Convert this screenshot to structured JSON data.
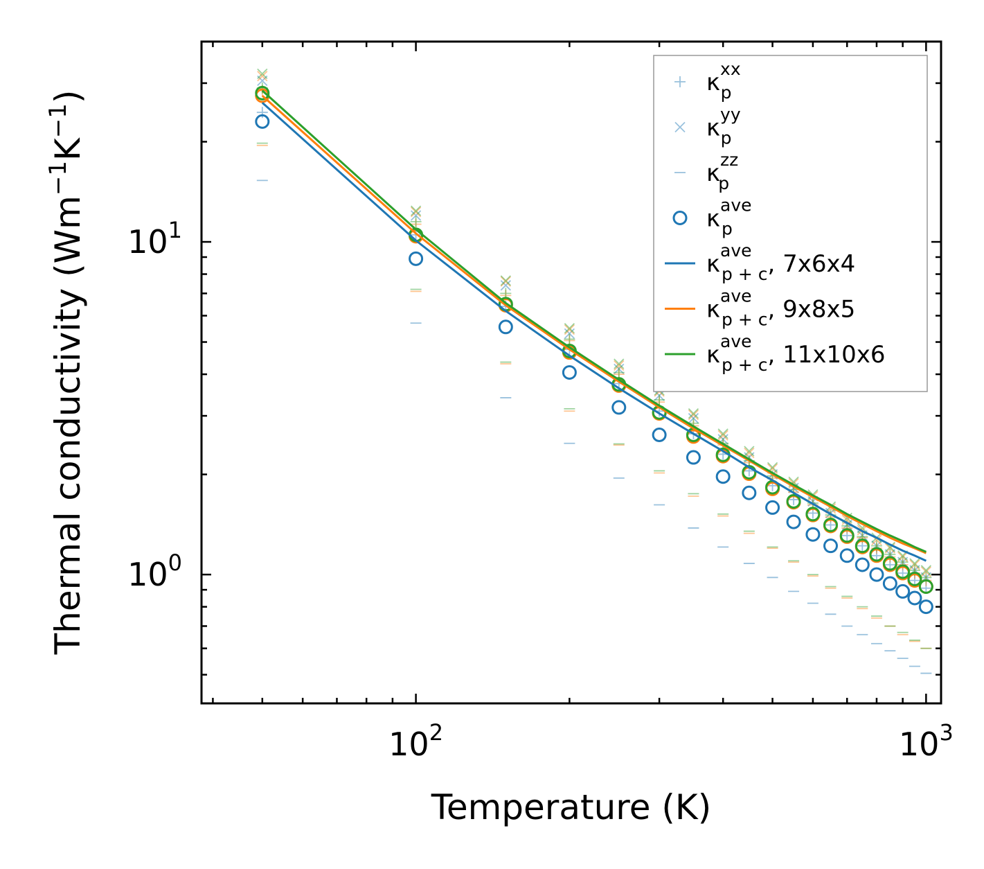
{
  "chart_data": {
    "type": "scatter",
    "title": "",
    "xlabel": "Temperature (K)",
    "ylabel_parts": [
      "Thermal conductivity (Wm",
      "−1",
      "K",
      "−1",
      ")"
    ],
    "xscale": "log",
    "yscale": "log",
    "xlim": [
      38,
      1070
    ],
    "ylim": [
      0.41,
      40
    ],
    "x_ticks": [
      {
        "value": 100,
        "base": "10",
        "exp": "2"
      },
      {
        "value": 1000,
        "base": "10",
        "exp": "3"
      }
    ],
    "y_ticks": [
      {
        "value": 1,
        "base": "10",
        "exp": "0"
      },
      {
        "value": 10,
        "base": "10",
        "exp": "1"
      }
    ],
    "x": [
      50,
      100,
      150,
      200,
      250,
      300,
      350,
      400,
      450,
      500,
      550,
      600,
      650,
      700,
      750,
      800,
      850,
      900,
      950,
      1000
    ],
    "marker_series": [
      {
        "name": "kxx_7x6x4",
        "marker": "plus",
        "color": "#1f77b4",
        "values": [
          24.5,
          10.5,
          6.4,
          4.75,
          3.75,
          3.1,
          2.65,
          2.3,
          2.05,
          1.85,
          1.68,
          1.53,
          1.41,
          1.31,
          1.22,
          1.14,
          1.07,
          1.01,
          0.96,
          0.91
        ]
      },
      {
        "name": "kyy_7x6x4",
        "marker": "x",
        "color": "#1f77b4",
        "values": [
          30.5,
          12,
          7.4,
          5.3,
          4.15,
          3.45,
          2.95,
          2.55,
          2.25,
          2.0,
          1.82,
          1.66,
          1.53,
          1.41,
          1.31,
          1.22,
          1.15,
          1.09,
          1.03,
          0.98
        ]
      },
      {
        "name": "kzz_7x6x4",
        "marker": "dash",
        "color": "#1f77b4",
        "values": [
          15.3,
          5.7,
          3.4,
          2.48,
          1.95,
          1.62,
          1.38,
          1.21,
          1.08,
          0.98,
          0.89,
          0.82,
          0.76,
          0.7,
          0.66,
          0.62,
          0.59,
          0.56,
          0.53,
          0.505
        ]
      },
      {
        "name": "kxx_9x8x5",
        "marker": "plus",
        "color": "#ff7f0e",
        "values": [
          28.5,
          11.3,
          6.9,
          5.05,
          4.0,
          3.3,
          2.8,
          2.45,
          2.17,
          1.95,
          1.77,
          1.62,
          1.49,
          1.38,
          1.29,
          1.2,
          1.13,
          1.07,
          1.01,
          0.96
        ]
      },
      {
        "name": "kyy_9x8x5",
        "marker": "x",
        "color": "#ff7f0e",
        "values": [
          31.5,
          12.3,
          7.6,
          5.45,
          4.25,
          3.55,
          3.02,
          2.62,
          2.32,
          2.08,
          1.88,
          1.72,
          1.58,
          1.46,
          1.36,
          1.27,
          1.2,
          1.13,
          1.07,
          1.02
        ]
      },
      {
        "name": "kzz_9x8x5",
        "marker": "dash",
        "color": "#ff7f0e",
        "values": [
          19.5,
          7.1,
          4.3,
          3.1,
          2.45,
          2.02,
          1.72,
          1.5,
          1.33,
          1.2,
          1.09,
          0.99,
          0.91,
          0.85,
          0.79,
          0.74,
          0.7,
          0.66,
          0.63,
          0.6
        ]
      },
      {
        "name": "kxx_11x10x6",
        "marker": "plus",
        "color": "#2ca02c",
        "values": [
          29,
          11.5,
          7.0,
          5.1,
          4.05,
          3.35,
          2.85,
          2.48,
          2.2,
          1.98,
          1.8,
          1.64,
          1.51,
          1.4,
          1.3,
          1.22,
          1.15,
          1.09,
          1.03,
          0.98
        ]
      },
      {
        "name": "kyy_11x10x6",
        "marker": "x",
        "color": "#2ca02c",
        "values": [
          32,
          12.4,
          7.65,
          5.5,
          4.3,
          3.58,
          3.05,
          2.65,
          2.35,
          2.1,
          1.9,
          1.74,
          1.6,
          1.48,
          1.38,
          1.29,
          1.21,
          1.14,
          1.08,
          1.03
        ]
      },
      {
        "name": "kzz_11x10x6",
        "marker": "dash",
        "color": "#2ca02c",
        "values": [
          19.8,
          7.2,
          4.35,
          3.15,
          2.47,
          2.05,
          1.75,
          1.52,
          1.35,
          1.21,
          1.1,
          1.0,
          0.92,
          0.86,
          0.8,
          0.75,
          0.7,
          0.67,
          0.635,
          0.6
        ]
      },
      {
        "name": "kave_7x6x4",
        "marker": "circle",
        "color": "#1f77b4",
        "values": [
          23.0,
          8.9,
          5.55,
          4.05,
          3.18,
          2.63,
          2.25,
          1.97,
          1.76,
          1.59,
          1.44,
          1.32,
          1.22,
          1.14,
          1.07,
          1.0,
          0.94,
          0.89,
          0.85,
          0.8
        ]
      },
      {
        "name": "kave_9x8x5",
        "marker": "circle",
        "color": "#ff7f0e",
        "values": [
          27.5,
          10.4,
          6.45,
          4.65,
          3.7,
          3.05,
          2.6,
          2.27,
          2.01,
          1.81,
          1.65,
          1.51,
          1.4,
          1.3,
          1.21,
          1.14,
          1.07,
          1.01,
          0.96,
          0.92
        ]
      },
      {
        "name": "kave_11x10x6",
        "marker": "circle",
        "color": "#2ca02c",
        "values": [
          28.0,
          10.5,
          6.5,
          4.7,
          3.73,
          3.07,
          2.63,
          2.29,
          2.03,
          1.83,
          1.66,
          1.52,
          1.41,
          1.31,
          1.22,
          1.15,
          1.08,
          1.02,
          0.97,
          0.92
        ]
      }
    ],
    "line_series": [
      {
        "name": "kave_p+c_7x6x4",
        "color": "#1f77b4",
        "values": [
          26.2,
          10.1,
          6.2,
          4.55,
          3.63,
          3.05,
          2.65,
          2.35,
          2.1,
          1.92,
          1.76,
          1.63,
          1.52,
          1.43,
          1.35,
          1.29,
          1.23,
          1.18,
          1.14,
          1.1
        ]
      },
      {
        "name": "kave_p+c_9x8x5",
        "color": "#ff7f0e",
        "values": [
          27.5,
          10.6,
          6.45,
          4.75,
          3.8,
          3.18,
          2.75,
          2.44,
          2.2,
          2.0,
          1.84,
          1.71,
          1.6,
          1.5,
          1.42,
          1.35,
          1.29,
          1.24,
          1.2,
          1.16
        ]
      },
      {
        "name": "kave_p+c_11x10x6",
        "color": "#2ca02c",
        "values": [
          28.5,
          10.9,
          6.55,
          4.82,
          3.85,
          3.22,
          2.79,
          2.47,
          2.22,
          2.02,
          1.86,
          1.73,
          1.62,
          1.52,
          1.44,
          1.37,
          1.31,
          1.26,
          1.21,
          1.17
        ]
      }
    ],
    "legend": {
      "placement": "top-right",
      "entries": [
        {
          "marker": "plus",
          "color": "#1f77b4",
          "base": "κ",
          "sup": "xx",
          "sub": "p",
          "suffix": ""
        },
        {
          "marker": "x",
          "color": "#1f77b4",
          "base": "κ",
          "sup": "yy",
          "sub": "p",
          "suffix": ""
        },
        {
          "marker": "dash",
          "color": "#1f77b4",
          "base": "κ",
          "sup": "zz",
          "sub": "p",
          "suffix": ""
        },
        {
          "marker": "circle",
          "color": "#1f77b4",
          "base": "κ",
          "sup": "ave",
          "sub": "p",
          "suffix": ""
        },
        {
          "marker": "line",
          "color": "#1f77b4",
          "base": "κ",
          "sup": "ave",
          "sub": "p + c",
          "suffix": ", 7x6x4"
        },
        {
          "marker": "line",
          "color": "#ff7f0e",
          "base": "κ",
          "sup": "ave",
          "sub": "p + c",
          "suffix": ", 9x8x5"
        },
        {
          "marker": "line",
          "color": "#2ca02c",
          "base": "κ",
          "sup": "ave",
          "sub": "p + c",
          "suffix": ", 11x10x6"
        }
      ]
    },
    "grid": false
  }
}
